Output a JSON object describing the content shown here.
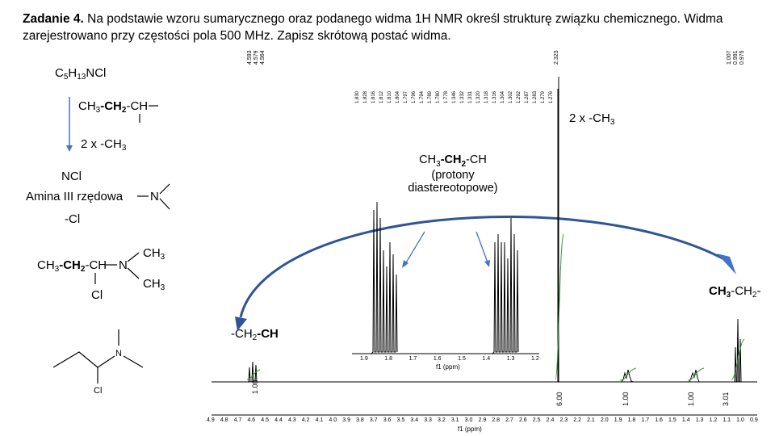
{
  "task": {
    "heading": "Zadanie 4.",
    "text": "Na podstawie wzoru sumarycznego oraz podanego widma 1H NMR określ strukturę związku chemicznego. Widma zarejestrowano przy częstości pola 500 MHz. Zapisz skrótową postać widma."
  },
  "analysis": {
    "formula_c": "C",
    "formula_c_sub": "5",
    "formula_h": "H",
    "formula_h_sub": "13",
    "formula_rest": "NCl",
    "frag1_a": "CH",
    "frag1_a_sub": "3",
    "frag1_b": "-CH",
    "frag1_b_sub": "2",
    "frag1_c": "-CH",
    "two_ch3_a": "2 x -CH",
    "two_ch3_sub": "3",
    "ncl": "NCl",
    "amine": "Amina III rzędowa",
    "n_atom": "N",
    "cl_group": "-Cl",
    "final_a": "CH",
    "final_a_sub": "3",
    "final_b": "-CH",
    "final_b_sub": "2",
    "final_c": "-CH",
    "final_n": "N",
    "final_ch3_top": "CH",
    "final_ch3_top_sub": "3",
    "final_ch3_bottom": "CH",
    "final_ch3_bottom_sub": "3",
    "final_cl": "Cl",
    "skeletal_n": "N",
    "skeletal_cl": "Cl"
  },
  "spectrum_labels": {
    "two_ch3_a": "2 x -CH",
    "two_ch3_sub": "3",
    "diastereo_line1_a": "CH",
    "diastereo_line1_a_sub": "3",
    "diastereo_line1_b": "-CH",
    "diastereo_line1_b_sub": "2",
    "diastereo_line1_c": "-CH",
    "diastereo_line2": "(protony",
    "diastereo_line3": "diastereotopowe)",
    "ch3ch2_a": "CH",
    "ch3ch2_sub": "3",
    "ch3ch2_b": "-CH",
    "ch3ch2_b_sub": "2",
    "ch3ch2_c": "-",
    "ch2ch_a": "-CH",
    "ch2ch_sub": "2",
    "ch2ch_b": "-CH"
  },
  "spectrum": {
    "x_axis_label": "f1 (ppm)",
    "inset_axis_label": "f1 (ppm)",
    "x_ticks": [
      "4.9",
      "4.8",
      "4.7",
      "4.6",
      "4.5",
      "4.4",
      "4.3",
      "4.2",
      "4.1",
      "4.0",
      "3.9",
      "3.8",
      "3.7",
      "3.6",
      "3.5",
      "3.4",
      "3.3",
      "3.2",
      "3.1",
      "3.0",
      "2.9",
      "2.8",
      "2.7",
      "2.6",
      "2.5",
      "2.4",
      "2.3",
      "2.2",
      "2.1",
      "2.0",
      "1.9",
      "1.8",
      "1.7",
      "1.6",
      "1.5",
      "1.4",
      "1.3",
      "1.2",
      "1.1",
      "1.0",
      "0.9"
    ],
    "inset_ticks": [
      "1.9",
      "1.8",
      "1.7",
      "1.6",
      "1.5",
      "1.4",
      "1.3",
      "1.2"
    ],
    "integrals": [
      "1.00",
      "6.00",
      "1.00",
      "1.00",
      "3.01"
    ],
    "peak_labels_left": [
      "4.593",
      "4.579",
      "4.564"
    ],
    "peak_label_mid": "2.323",
    "peak_labels_right": [
      "1.007",
      "0.991",
      "0.975"
    ],
    "inset_peak_labels": [
      "1.830",
      "1.828",
      "1.816",
      "1.812",
      "1.810",
      "1.804",
      "1.797",
      "1.796",
      "1.794",
      "1.789",
      "1.780",
      "1.778",
      "1.346",
      "1.332",
      "1.331",
      "1.320",
      "1.318",
      "1.316",
      "1.304",
      "1.302",
      "1.292",
      "1.287",
      "1.283",
      "1.279",
      "1.276"
    ]
  }
}
